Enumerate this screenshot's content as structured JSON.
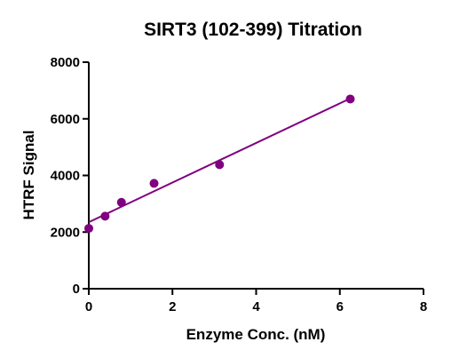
{
  "chart_data": {
    "type": "scatter",
    "title": "SIRT3 (102-399) Titration",
    "xlabel": "Enzyme Conc. (nM)",
    "ylabel": "HTRF Signal",
    "xlim": [
      0,
      8
    ],
    "ylim": [
      0,
      8000
    ],
    "xticks": [
      "0",
      "2",
      "4",
      "6",
      "8"
    ],
    "yticks": [
      "0",
      "2000",
      "4000",
      "6000",
      "8000"
    ],
    "grid": false,
    "legend": "none",
    "color": "#800080",
    "series": [
      {
        "x": [
          0,
          0.39,
          0.78,
          1.56,
          3.125,
          6.25
        ],
        "y": [
          2130,
          2560,
          3050,
          3720,
          4380,
          6700
        ]
      }
    ],
    "fit_line": {
      "x": [
        0,
        6.25
      ],
      "y": [
        2350,
        6720
      ]
    }
  }
}
